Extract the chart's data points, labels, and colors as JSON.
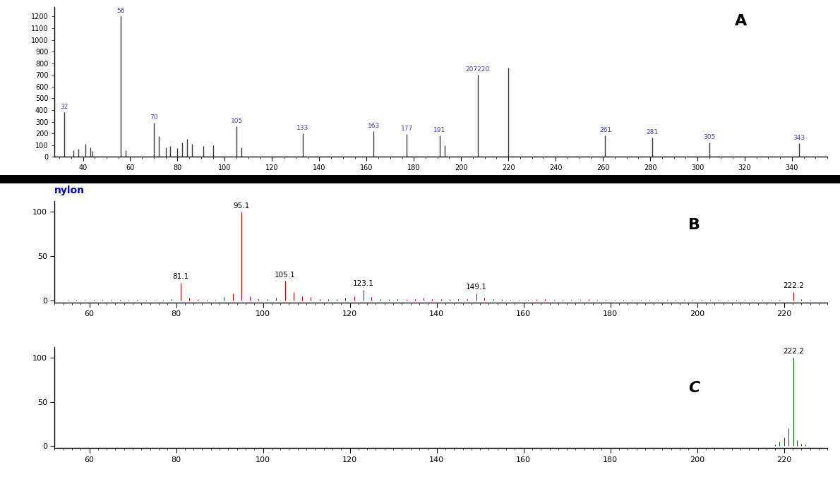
{
  "panel_A": {
    "label": "A",
    "color": "#3a3a3a",
    "xlim": [
      28,
      355
    ],
    "ylim": [
      0,
      1280
    ],
    "yticks": [
      0,
      100,
      200,
      300,
      400,
      500,
      600,
      700,
      800,
      900,
      1000,
      1100,
      1200
    ],
    "xticks": [
      40,
      60,
      80,
      100,
      120,
      140,
      160,
      180,
      200,
      220,
      240,
      260,
      280,
      300,
      320,
      340
    ],
    "peaks": [
      {
        "mz": 32,
        "intensity": 380,
        "label": "32"
      },
      {
        "mz": 36,
        "intensity": 55,
        "label": ""
      },
      {
        "mz": 38,
        "intensity": 70,
        "label": ""
      },
      {
        "mz": 41,
        "intensity": 110,
        "label": ""
      },
      {
        "mz": 43,
        "intensity": 80,
        "label": ""
      },
      {
        "mz": 44,
        "intensity": 50,
        "label": ""
      },
      {
        "mz": 56,
        "intensity": 1200,
        "label": "56"
      },
      {
        "mz": 58,
        "intensity": 55,
        "label": ""
      },
      {
        "mz": 70,
        "intensity": 290,
        "label": "70"
      },
      {
        "mz": 72,
        "intensity": 175,
        "label": ""
      },
      {
        "mz": 75,
        "intensity": 80,
        "label": ""
      },
      {
        "mz": 77,
        "intensity": 90,
        "label": ""
      },
      {
        "mz": 80,
        "intensity": 75,
        "label": ""
      },
      {
        "mz": 82,
        "intensity": 120,
        "label": ""
      },
      {
        "mz": 84,
        "intensity": 150,
        "label": ""
      },
      {
        "mz": 86,
        "intensity": 110,
        "label": ""
      },
      {
        "mz": 91,
        "intensity": 95,
        "label": ""
      },
      {
        "mz": 95,
        "intensity": 100,
        "label": ""
      },
      {
        "mz": 105,
        "intensity": 260,
        "label": "105"
      },
      {
        "mz": 107,
        "intensity": 80,
        "label": ""
      },
      {
        "mz": 133,
        "intensity": 200,
        "label": "133"
      },
      {
        "mz": 163,
        "intensity": 220,
        "label": "163"
      },
      {
        "mz": 177,
        "intensity": 195,
        "label": "177"
      },
      {
        "mz": 191,
        "intensity": 185,
        "label": "191"
      },
      {
        "mz": 193,
        "intensity": 100,
        "label": ""
      },
      {
        "mz": 207,
        "intensity": 700,
        "label": "207220"
      },
      {
        "mz": 220,
        "intensity": 760,
        "label": ""
      },
      {
        "mz": 261,
        "intensity": 185,
        "label": "261"
      },
      {
        "mz": 281,
        "intensity": 165,
        "label": "281"
      },
      {
        "mz": 305,
        "intensity": 125,
        "label": "305"
      },
      {
        "mz": 343,
        "intensity": 115,
        "label": "343"
      }
    ]
  },
  "nylon_label": "nylon",
  "panel_B": {
    "label": "B",
    "color": "#cc0000",
    "xlim": [
      52,
      230
    ],
    "ylim": [
      -2,
      112
    ],
    "yticks": [
      0,
      50,
      100
    ],
    "ytick_labels": [
      "0",
      "50",
      "100"
    ],
    "xticks": [
      60,
      80,
      100,
      120,
      140,
      160,
      180,
      200,
      220
    ],
    "peaks": [
      {
        "mz": 55,
        "intensity": 1.0,
        "label": ""
      },
      {
        "mz": 57,
        "intensity": 0.8,
        "label": ""
      },
      {
        "mz": 59,
        "intensity": 0.7,
        "label": ""
      },
      {
        "mz": 61,
        "intensity": 0.8,
        "label": ""
      },
      {
        "mz": 63,
        "intensity": 1.0,
        "label": ""
      },
      {
        "mz": 65,
        "intensity": 0.8,
        "label": ""
      },
      {
        "mz": 67,
        "intensity": 1.2,
        "label": ""
      },
      {
        "mz": 69,
        "intensity": 1.0,
        "label": ""
      },
      {
        "mz": 71,
        "intensity": 0.8,
        "label": ""
      },
      {
        "mz": 73,
        "intensity": 0.7,
        "label": ""
      },
      {
        "mz": 75,
        "intensity": 0.8,
        "label": ""
      },
      {
        "mz": 77,
        "intensity": 1.2,
        "label": ""
      },
      {
        "mz": 79,
        "intensity": 2.0,
        "label": ""
      },
      {
        "mz": 81.1,
        "intensity": 20,
        "label": "81.1"
      },
      {
        "mz": 83,
        "intensity": 3.5,
        "label": ""
      },
      {
        "mz": 85,
        "intensity": 1.5,
        "label": ""
      },
      {
        "mz": 87,
        "intensity": 1.0,
        "label": ""
      },
      {
        "mz": 89,
        "intensity": 1.0,
        "label": ""
      },
      {
        "mz": 91,
        "intensity": 4.0,
        "label": ""
      },
      {
        "mz": 93,
        "intensity": 8.0,
        "label": ""
      },
      {
        "mz": 95.1,
        "intensity": 100,
        "label": "95.1"
      },
      {
        "mz": 97,
        "intensity": 5.0,
        "label": ""
      },
      {
        "mz": 99,
        "intensity": 2.0,
        "label": ""
      },
      {
        "mz": 101,
        "intensity": 1.5,
        "label": ""
      },
      {
        "mz": 103,
        "intensity": 3.0,
        "label": ""
      },
      {
        "mz": 105.1,
        "intensity": 22,
        "label": "105.1"
      },
      {
        "mz": 107,
        "intensity": 10,
        "label": ""
      },
      {
        "mz": 109,
        "intensity": 5.0,
        "label": ""
      },
      {
        "mz": 111,
        "intensity": 4.0,
        "label": ""
      },
      {
        "mz": 113,
        "intensity": 2.0,
        "label": ""
      },
      {
        "mz": 115,
        "intensity": 1.5,
        "label": ""
      },
      {
        "mz": 117,
        "intensity": 1.5,
        "label": ""
      },
      {
        "mz": 119,
        "intensity": 3.0,
        "label": ""
      },
      {
        "mz": 121,
        "intensity": 5.0,
        "label": ""
      },
      {
        "mz": 123.1,
        "intensity": 12,
        "label": "123.1"
      },
      {
        "mz": 125,
        "intensity": 4.0,
        "label": ""
      },
      {
        "mz": 127,
        "intensity": 2.0,
        "label": ""
      },
      {
        "mz": 129,
        "intensity": 1.5,
        "label": ""
      },
      {
        "mz": 131,
        "intensity": 1.5,
        "label": ""
      },
      {
        "mz": 133,
        "intensity": 2.0,
        "label": ""
      },
      {
        "mz": 135,
        "intensity": 2.0,
        "label": ""
      },
      {
        "mz": 137,
        "intensity": 3.0,
        "label": ""
      },
      {
        "mz": 139,
        "intensity": 2.0,
        "label": ""
      },
      {
        "mz": 141,
        "intensity": 1.5,
        "label": ""
      },
      {
        "mz": 143,
        "intensity": 1.5,
        "label": ""
      },
      {
        "mz": 145,
        "intensity": 1.5,
        "label": ""
      },
      {
        "mz": 147,
        "intensity": 2.0,
        "label": ""
      },
      {
        "mz": 149.1,
        "intensity": 8.0,
        "label": "149.1"
      },
      {
        "mz": 151,
        "intensity": 3.0,
        "label": ""
      },
      {
        "mz": 153,
        "intensity": 2.0,
        "label": ""
      },
      {
        "mz": 155,
        "intensity": 1.5,
        "label": ""
      },
      {
        "mz": 157,
        "intensity": 1.0,
        "label": ""
      },
      {
        "mz": 159,
        "intensity": 1.0,
        "label": ""
      },
      {
        "mz": 161,
        "intensity": 1.0,
        "label": ""
      },
      {
        "mz": 163,
        "intensity": 2.0,
        "label": ""
      },
      {
        "mz": 165,
        "intensity": 2.0,
        "label": ""
      },
      {
        "mz": 167,
        "intensity": 1.0,
        "label": ""
      },
      {
        "mz": 169,
        "intensity": 1.0,
        "label": ""
      },
      {
        "mz": 171,
        "intensity": 1.0,
        "label": ""
      },
      {
        "mz": 173,
        "intensity": 1.0,
        "label": ""
      },
      {
        "mz": 175,
        "intensity": 1.5,
        "label": ""
      },
      {
        "mz": 177,
        "intensity": 1.0,
        "label": ""
      },
      {
        "mz": 179,
        "intensity": 0.8,
        "label": ""
      },
      {
        "mz": 181,
        "intensity": 0.8,
        "label": ""
      },
      {
        "mz": 183,
        "intensity": 0.8,
        "label": ""
      },
      {
        "mz": 185,
        "intensity": 0.8,
        "label": ""
      },
      {
        "mz": 187,
        "intensity": 0.8,
        "label": ""
      },
      {
        "mz": 189,
        "intensity": 0.8,
        "label": ""
      },
      {
        "mz": 191,
        "intensity": 0.8,
        "label": ""
      },
      {
        "mz": 193,
        "intensity": 1.2,
        "label": ""
      },
      {
        "mz": 195,
        "intensity": 0.8,
        "label": ""
      },
      {
        "mz": 197,
        "intensity": 0.8,
        "label": ""
      },
      {
        "mz": 199,
        "intensity": 0.8,
        "label": ""
      },
      {
        "mz": 201,
        "intensity": 0.7,
        "label": ""
      },
      {
        "mz": 203,
        "intensity": 0.7,
        "label": ""
      },
      {
        "mz": 205,
        "intensity": 0.7,
        "label": ""
      },
      {
        "mz": 207,
        "intensity": 0.7,
        "label": ""
      },
      {
        "mz": 209,
        "intensity": 0.7,
        "label": ""
      },
      {
        "mz": 211,
        "intensity": 0.7,
        "label": ""
      },
      {
        "mz": 213,
        "intensity": 0.7,
        "label": ""
      },
      {
        "mz": 215,
        "intensity": 0.7,
        "label": ""
      },
      {
        "mz": 217,
        "intensity": 0.7,
        "label": ""
      },
      {
        "mz": 219,
        "intensity": 0.7,
        "label": ""
      },
      {
        "mz": 222.2,
        "intensity": 10,
        "label": "222.2"
      },
      {
        "mz": 224,
        "intensity": 2.0,
        "label": ""
      },
      {
        "mz": 226,
        "intensity": 1.0,
        "label": ""
      }
    ]
  },
  "panel_C": {
    "label": "C",
    "color": "#006600",
    "xlim": [
      52,
      230
    ],
    "ylim": [
      -2,
      112
    ],
    "yticks": [
      0,
      50,
      100
    ],
    "ytick_labels": [
      "0",
      "50",
      "100"
    ],
    "xticks": [
      60,
      80,
      100,
      120,
      140,
      160,
      180,
      200,
      220
    ],
    "peaks": [
      {
        "mz": 55,
        "intensity": 0.5,
        "label": ""
      },
      {
        "mz": 57,
        "intensity": 0.4,
        "label": ""
      },
      {
        "mz": 60,
        "intensity": 0.4,
        "label": ""
      },
      {
        "mz": 65,
        "intensity": 0.4,
        "label": ""
      },
      {
        "mz": 70,
        "intensity": 0.4,
        "label": ""
      },
      {
        "mz": 75,
        "intensity": 0.4,
        "label": ""
      },
      {
        "mz": 80,
        "intensity": 0.4,
        "label": ""
      },
      {
        "mz": 85,
        "intensity": 0.4,
        "label": ""
      },
      {
        "mz": 90,
        "intensity": 0.4,
        "label": ""
      },
      {
        "mz": 95,
        "intensity": 0.4,
        "label": ""
      },
      {
        "mz": 100,
        "intensity": 0.4,
        "label": ""
      },
      {
        "mz": 105,
        "intensity": 0.4,
        "label": ""
      },
      {
        "mz": 110,
        "intensity": 0.4,
        "label": ""
      },
      {
        "mz": 115,
        "intensity": 0.4,
        "label": ""
      },
      {
        "mz": 120,
        "intensity": 0.4,
        "label": ""
      },
      {
        "mz": 125,
        "intensity": 0.4,
        "label": ""
      },
      {
        "mz": 130,
        "intensity": 0.4,
        "label": ""
      },
      {
        "mz": 135,
        "intensity": 0.4,
        "label": ""
      },
      {
        "mz": 140,
        "intensity": 0.4,
        "label": ""
      },
      {
        "mz": 145,
        "intensity": 0.4,
        "label": ""
      },
      {
        "mz": 150,
        "intensity": 0.4,
        "label": ""
      },
      {
        "mz": 155,
        "intensity": 0.4,
        "label": ""
      },
      {
        "mz": 160,
        "intensity": 0.4,
        "label": ""
      },
      {
        "mz": 165,
        "intensity": 0.4,
        "label": ""
      },
      {
        "mz": 170,
        "intensity": 0.4,
        "label": ""
      },
      {
        "mz": 175,
        "intensity": 0.4,
        "label": ""
      },
      {
        "mz": 180,
        "intensity": 0.4,
        "label": ""
      },
      {
        "mz": 185,
        "intensity": 0.4,
        "label": ""
      },
      {
        "mz": 190,
        "intensity": 0.4,
        "label": ""
      },
      {
        "mz": 195,
        "intensity": 0.4,
        "label": ""
      },
      {
        "mz": 200,
        "intensity": 0.4,
        "label": ""
      },
      {
        "mz": 205,
        "intensity": 0.4,
        "label": ""
      },
      {
        "mz": 210,
        "intensity": 0.4,
        "label": ""
      },
      {
        "mz": 215,
        "intensity": 0.4,
        "label": ""
      },
      {
        "mz": 218,
        "intensity": 2.0,
        "label": ""
      },
      {
        "mz": 219,
        "intensity": 5.0,
        "label": ""
      },
      {
        "mz": 220,
        "intensity": 10.0,
        "label": ""
      },
      {
        "mz": 221,
        "intensity": 20.0,
        "label": ""
      },
      {
        "mz": 222.2,
        "intensity": 100,
        "label": "222.2"
      },
      {
        "mz": 223,
        "intensity": 7.0,
        "label": ""
      },
      {
        "mz": 224,
        "intensity": 3.0,
        "label": ""
      },
      {
        "mz": 225,
        "intensity": 2.0,
        "label": ""
      }
    ]
  },
  "background_color": "#ffffff",
  "separator_color": "#000000",
  "label_color_A": "#4444aa",
  "label_color_nylon": "#0000bb",
  "label_color_panel": "#000000"
}
